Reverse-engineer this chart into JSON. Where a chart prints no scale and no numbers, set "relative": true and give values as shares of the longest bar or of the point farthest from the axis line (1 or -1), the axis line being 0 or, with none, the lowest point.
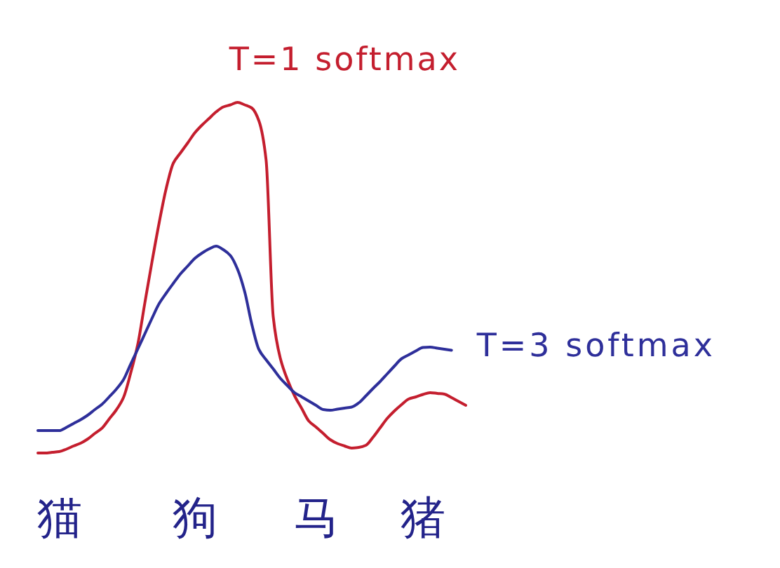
{
  "chart_data": {
    "type": "line",
    "relative": true,
    "categories": [
      null,
      null,
      null,
      "猫",
      null,
      null,
      null,
      null,
      null,
      null,
      null,
      null,
      null,
      null,
      null,
      null,
      null,
      null,
      null,
      null,
      null,
      null,
      "狗",
      null,
      null,
      null,
      null,
      null,
      null,
      null,
      null,
      null,
      null,
      null,
      null,
      null,
      null,
      null,
      null,
      "马",
      null,
      null,
      null,
      null,
      null,
      null,
      null,
      null,
      null,
      null,
      null,
      null,
      null,
      null,
      "猪",
      null,
      null,
      null,
      null,
      null,
      null
    ],
    "series": [
      {
        "name": "T=1 softmax",
        "color": "#c41e2e",
        "values": [
          0.0,
          0.0,
          0.002,
          0.004,
          0.011,
          0.02,
          0.028,
          0.04,
          0.056,
          0.071,
          0.097,
          0.123,
          0.158,
          0.227,
          0.309,
          0.428,
          0.545,
          0.656,
          0.755,
          0.827,
          0.856,
          0.884,
          0.913,
          0.935,
          0.954,
          0.973,
          0.987,
          0.993,
          1.0,
          0.993,
          0.984,
          0.947,
          0.836,
          0.389,
          0.27,
          0.209,
          0.163,
          0.127,
          0.091,
          0.074,
          0.056,
          0.038,
          0.027,
          0.02,
          0.014,
          0.016,
          0.022,
          0.045,
          0.072,
          0.099,
          0.12,
          0.138,
          0.154,
          0.16,
          0.167,
          0.172,
          0.17,
          0.168,
          0.158,
          0.147,
          0.136
        ]
      },
      {
        "name": "T=3 softmax",
        "color": "#2e2f9a",
        "values": [
          0.064,
          0.064,
          0.064,
          0.064,
          0.073,
          0.084,
          0.095,
          0.108,
          0.124,
          0.139,
          0.16,
          0.182,
          0.209,
          0.253,
          0.296,
          0.34,
          0.384,
          0.426,
          0.456,
          0.484,
          0.511,
          0.533,
          0.555,
          0.57,
          0.582,
          0.59,
          0.58,
          0.563,
          0.524,
          0.46,
          0.367,
          0.295,
          0.266,
          0.24,
          0.213,
          0.192,
          0.172,
          0.16,
          0.148,
          0.136,
          0.124,
          0.122,
          0.125,
          0.128,
          0.131,
          0.143,
          0.163,
          0.184,
          0.204,
          0.226,
          0.248,
          0.269,
          0.28,
          0.291,
          0.301,
          0.302,
          0.299,
          0.296,
          0.293,
          null,
          null
        ]
      }
    ]
  }
}
